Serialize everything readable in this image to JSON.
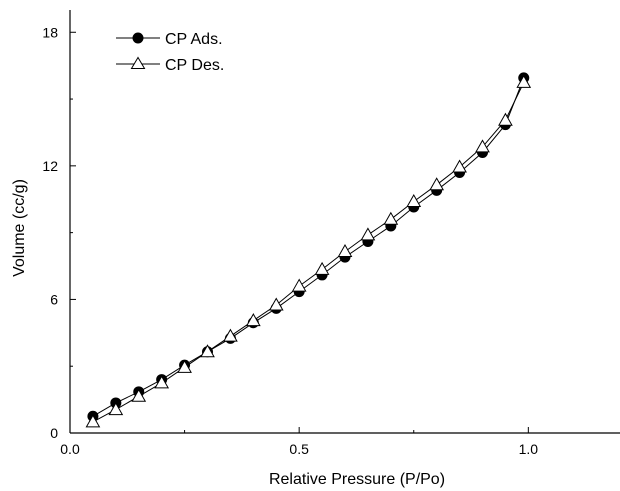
{
  "chart_data": {
    "type": "line",
    "xlabel": "Relative Pressure (P/Po)",
    "ylabel": "Volume (cc/g)",
    "xlim": [
      0.0,
      1.2
    ],
    "ylim": [
      0,
      19
    ],
    "xticks": [
      {
        "value": 0.0,
        "label": "0.0"
      },
      {
        "value": 0.5,
        "label": "0.5"
      },
      {
        "value": 1.0,
        "label": "1.0"
      }
    ],
    "yticks": [
      {
        "value": 0,
        "label": "0"
      },
      {
        "value": 6,
        "label": "6"
      },
      {
        "value": 12,
        "label": "12"
      },
      {
        "value": 18,
        "label": "18"
      }
    ],
    "grid": false,
    "legend_position": "top-left",
    "series": [
      {
        "name": "CP Ads.",
        "marker": "filled-circle",
        "color": "#000000",
        "x": [
          0.05,
          0.1,
          0.15,
          0.2,
          0.25,
          0.3,
          0.35,
          0.4,
          0.45,
          0.5,
          0.55,
          0.6,
          0.65,
          0.7,
          0.75,
          0.8,
          0.85,
          0.9,
          0.95,
          0.99
        ],
        "y": [
          0.75,
          1.35,
          1.85,
          2.4,
          3.05,
          3.65,
          4.25,
          4.95,
          5.6,
          6.35,
          7.1,
          7.9,
          8.6,
          9.3,
          10.15,
          10.9,
          11.7,
          12.6,
          13.85,
          15.95
        ]
      },
      {
        "name": "CP Des.",
        "marker": "open-triangle",
        "color": "#000000",
        "x": [
          0.05,
          0.1,
          0.15,
          0.2,
          0.25,
          0.3,
          0.35,
          0.4,
          0.45,
          0.5,
          0.55,
          0.6,
          0.65,
          0.7,
          0.75,
          0.8,
          0.85,
          0.9,
          0.95,
          0.99
        ],
        "y": [
          0.5,
          1.05,
          1.65,
          2.25,
          2.95,
          3.65,
          4.35,
          5.05,
          5.75,
          6.6,
          7.35,
          8.15,
          8.9,
          9.6,
          10.4,
          11.15,
          11.95,
          12.85,
          14.05,
          15.75
        ]
      }
    ]
  }
}
